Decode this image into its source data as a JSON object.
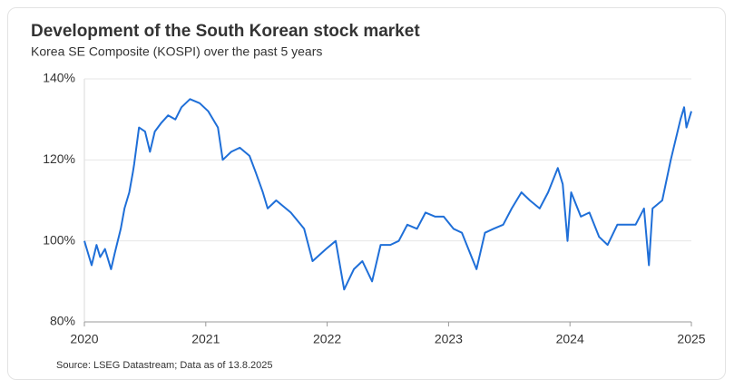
{
  "chart_data": {
    "type": "line",
    "title": "Development of the South Korean stock market",
    "subtitle": "Korea SE Composite (KOSPI) over the past 5 years",
    "source": "Source: LSEG Datastream; Data as of 13.8.2025",
    "color": "#1f6fd8",
    "xlim": [
      2020,
      2025
    ],
    "xticks": [
      2020,
      2021,
      2022,
      2023,
      2024,
      2025
    ],
    "ylim": [
      80,
      140
    ],
    "yticks": [
      {
        "value": 80,
        "label": "80%"
      },
      {
        "value": 100,
        "label": "100%"
      },
      {
        "value": 120,
        "label": "120%"
      },
      {
        "value": 140,
        "label": "140%"
      }
    ],
    "grid": true,
    "x": [
      2020.0,
      2020.03,
      2020.06,
      2020.1,
      2020.13,
      2020.17,
      2020.22,
      2020.25,
      2020.3,
      2020.33,
      2020.37,
      2020.4,
      2020.41,
      2020.45,
      2020.5,
      2020.54,
      2020.58,
      2020.63,
      2020.69,
      2020.75,
      2020.8,
      2020.87,
      2020.95,
      2021.02,
      2021.1,
      2021.14,
      2021.21,
      2021.28,
      2021.36,
      2021.41,
      2021.47,
      2021.51,
      2021.58,
      2021.7,
      2021.81,
      2021.88,
      2021.99,
      2022.07,
      2022.14,
      2022.22,
      2022.29,
      2022.37,
      2022.44,
      2022.52,
      2022.59,
      2022.66,
      2022.74,
      2022.81,
      2022.89,
      2022.96,
      2023.04,
      2023.11,
      2023.19,
      2023.23,
      2023.3,
      2023.37,
      2023.45,
      2023.52,
      2023.6,
      2023.67,
      2023.75,
      2023.82,
      2023.9,
      2023.94,
      2023.98,
      2024.01,
      2024.09,
      2024.16,
      2024.24,
      2024.31,
      2024.39,
      2024.46,
      2024.54,
      2024.61,
      2024.65,
      2024.68,
      2024.76,
      2024.83,
      2024.91,
      2024.94,
      2024.96,
      2025.0
    ],
    "values": [
      100,
      97,
      94,
      99,
      96,
      98,
      93,
      97,
      103,
      108,
      112,
      117,
      119,
      128,
      127,
      122,
      127,
      129,
      131,
      130,
      133,
      135,
      134,
      132,
      128,
      120,
      122,
      123,
      121,
      117,
      112,
      108,
      110,
      107,
      103,
      95,
      98,
      100,
      88,
      93,
      95,
      90,
      99,
      99,
      100,
      104,
      103,
      107,
      106,
      106,
      103,
      102,
      96,
      93,
      102,
      103,
      104,
      108,
      112,
      110,
      108,
      112,
      118,
      114,
      100,
      112,
      106,
      107,
      101,
      99,
      104,
      104,
      104,
      108,
      94,
      108,
      110,
      120,
      130,
      133,
      128,
      132
    ]
  }
}
